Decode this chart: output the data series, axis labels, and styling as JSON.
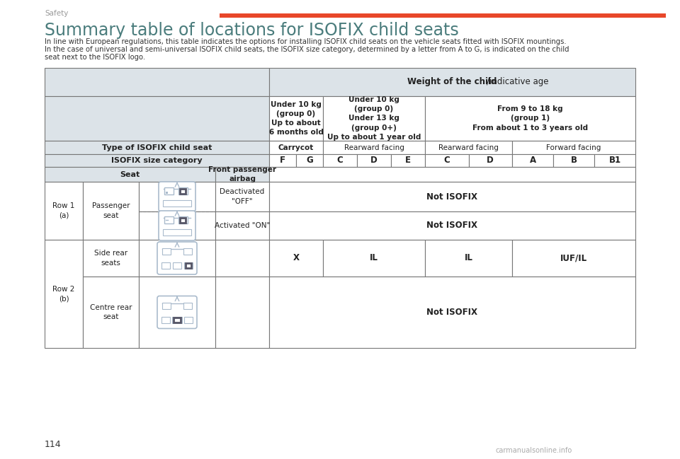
{
  "title": "Summary table of locations for ISOFIX child seats",
  "header_label": "Safety",
  "page_number": "114",
  "subtitle_line1": "In line with European regulations, this table indicates the options for installing ISOFIX child seats on the vehicle seats fitted with ISOFIX mountings.",
  "subtitle_line2": "In the case of universal and semi-universal ISOFIX child seats, the ISOFIX size category, determined by a letter from A to G, is indicated on the child",
  "subtitle_line3": "seat next to the ISOFIX logo.",
  "red_bar_color": "#e8472a",
  "header_bg": "#dce3e8",
  "table_border": "#777777",
  "title_color": "#4a7c7c",
  "header_label_color": "#999999",
  "text_color": "#222222",
  "weight_header_bold": "Weight of the child",
  "weight_header_normal": "/indicative age",
  "col1_header": "Under 10 kg\n(group 0)\nUp to about\n6 months old",
  "col2_header": "Under 10 kg\n(group 0)\nUnder 13 kg\n(group 0+)\nUp to about 1 year old",
  "col3_header": "From 9 to 18 kg\n(group 1)\nFrom about 1 to 3 years old",
  "type_label": "Type of ISOFIX child seat",
  "type_carrycot": "Carrycot",
  "type_rearward1": "Rearward facing",
  "type_rearward2": "Rearward facing",
  "type_forward": "Forward facing",
  "size_label": "ISOFIX size category",
  "size_cats": [
    "F",
    "G",
    "C",
    "D",
    "E",
    "C",
    "D",
    "A",
    "B",
    "B1"
  ],
  "seat_label": "Seat",
  "airbag_label": "Front passenger\nairbag",
  "row1_label": "Row 1\n(a)",
  "row1_seat": "Passenger\nseat",
  "row1_deact": "Deactivated\n\"OFF\"",
  "row1_act": "Activated \"ON\"",
  "row1_deact_val": "Not ISOFIX",
  "row1_act_val": "Not ISOFIX",
  "row2_label": "Row 2\n(b)",
  "row2_seat1": "Side rear\nseats",
  "row2_seat2": "Centre rear\nseat",
  "row2_side_vals": [
    "X",
    "IL",
    "IL",
    "IUF/IL"
  ],
  "row2_centre_val": "Not ISOFIX",
  "watermark": "carmanualsonline.info",
  "car_color": "#aabbcc"
}
